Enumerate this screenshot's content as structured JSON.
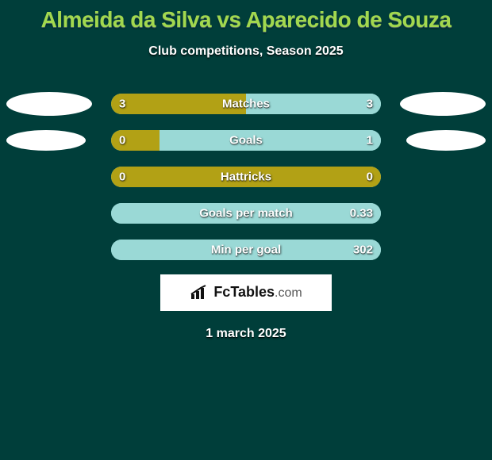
{
  "colors": {
    "background": "#003e3a",
    "title": "#a2d84e",
    "accent_left": "#b2a115",
    "accent_right": "#9ad9d6",
    "track": "#82cfcb",
    "ellipse_bg": "#ffffff"
  },
  "title": "Almeida da Silva vs Aparecido de Souza",
  "subtitle": "Club competitions, Season 2025",
  "date": "1 march 2025",
  "logo": {
    "icon": "bars-icon",
    "fc": "Fc",
    "tables": "Tables",
    "dom": ".com"
  },
  "layout": {
    "bar_track_height": 26,
    "bar_radius": 14,
    "ellipse_large_w": 108,
    "ellipse_large_h": 30,
    "ellipse_small_w": 100,
    "ellipse_small_h": 26
  },
  "stats": [
    {
      "label": "Matches",
      "left_value": "3",
      "right_value": "3",
      "left_pct": 50,
      "right_pct": 50,
      "left_color": "#b2a115",
      "right_color": "#9ad9d6",
      "ellipse": "large"
    },
    {
      "label": "Goals",
      "left_value": "0",
      "right_value": "1",
      "left_pct": 18,
      "right_pct": 82,
      "left_color": "#b2a115",
      "right_color": "#9ad9d6",
      "ellipse": "small"
    },
    {
      "label": "Hattricks",
      "left_value": "0",
      "right_value": "0",
      "left_pct": 100,
      "right_pct": 0,
      "left_color": "#b2a115",
      "right_color": "#9ad9d6",
      "ellipse": null
    },
    {
      "label": "Goals per match",
      "left_value": "",
      "right_value": "0.33",
      "left_pct": 0,
      "right_pct": 100,
      "left_color": "#b2a115",
      "right_color": "#9ad9d6",
      "ellipse": null
    },
    {
      "label": "Min per goal",
      "left_value": "",
      "right_value": "302",
      "left_pct": 0,
      "right_pct": 100,
      "left_color": "#b2a115",
      "right_color": "#9ad9d6",
      "ellipse": null
    }
  ]
}
